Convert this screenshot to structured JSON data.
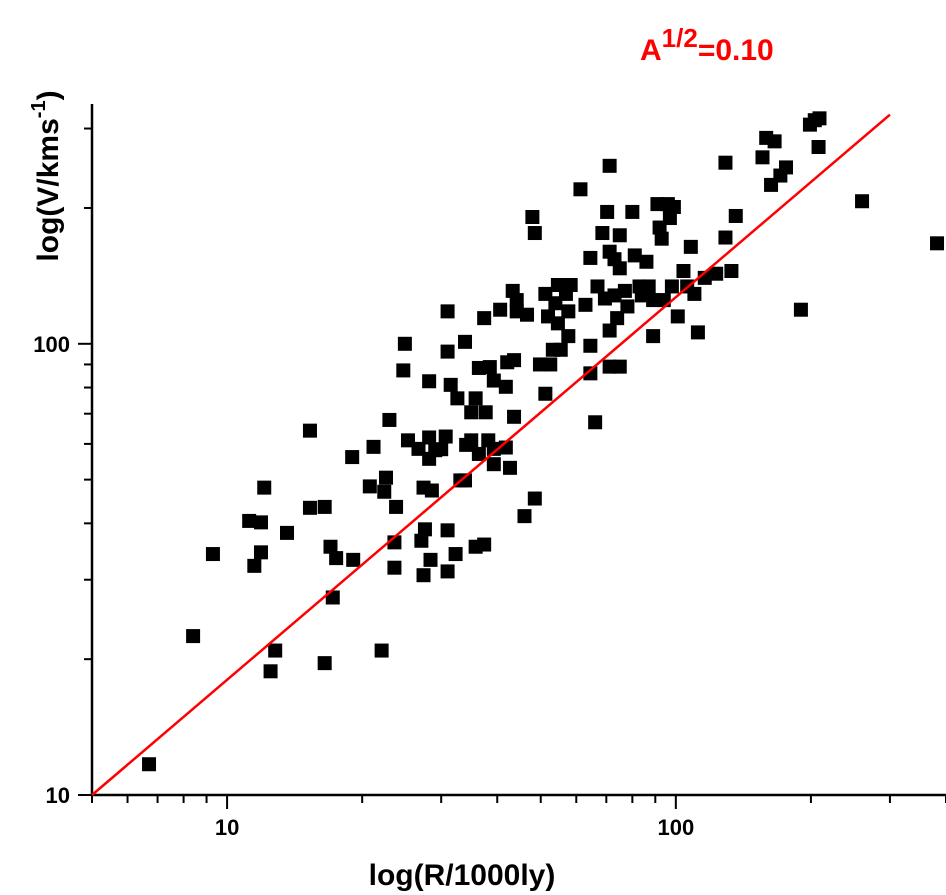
{
  "chart_data": {
    "type": "scatter",
    "xlabel": "log(R/1000ly)",
    "ylabel_main": "log(V/kms",
    "ylabel_sup": "-1",
    "ylabel_close": ")",
    "x_scale": "log",
    "y_scale": "log",
    "xlim": [
      5,
      400
    ],
    "ylim": [
      10,
      340
    ],
    "x_ticks": [
      {
        "value": 10,
        "label": "10"
      },
      {
        "value": 100,
        "label": "100"
      }
    ],
    "y_ticks": [
      {
        "value": 10,
        "label": "10"
      },
      {
        "value": 100,
        "label": "100"
      }
    ],
    "grid": false,
    "marker": "square",
    "marker_color": "#000000",
    "fit_color": "#ff0000",
    "annotation": {
      "base": "A",
      "sup": "1/2",
      "rest": "=0.10"
    },
    "fit_line": {
      "x": [
        5,
        300
      ],
      "y": [
        10,
        322
      ]
    },
    "points": [
      [
        6.7,
        11.7
      ],
      [
        8.4,
        22.5
      ],
      [
        9.3,
        34.2
      ],
      [
        11.2,
        40.5
      ],
      [
        11.5,
        32.2
      ],
      [
        11.9,
        40.2
      ],
      [
        12.1,
        48.0
      ],
      [
        11.9,
        34.5
      ],
      [
        12.5,
        18.8
      ],
      [
        12.8,
        20.9
      ],
      [
        13.6,
        38.1
      ],
      [
        15.3,
        64.2
      ],
      [
        15.3,
        43.3
      ],
      [
        16.5,
        19.6
      ],
      [
        16.5,
        43.5
      ],
      [
        17.0,
        35.5
      ],
      [
        17.2,
        27.4
      ],
      [
        17.5,
        33.5
      ],
      [
        19.0,
        56.1
      ],
      [
        19.1,
        33.2
      ],
      [
        20.8,
        48.3
      ],
      [
        21.2,
        59.1
      ],
      [
        22.1,
        20.9
      ],
      [
        22.6,
        50.5
      ],
      [
        22.4,
        47.0
      ],
      [
        23.0,
        67.8
      ],
      [
        23.6,
        31.9
      ],
      [
        23.6,
        36.3
      ],
      [
        23.8,
        43.5
      ],
      [
        24.7,
        87.3
      ],
      [
        24.9,
        100.0
      ],
      [
        25.3,
        61.1
      ],
      [
        26.7,
        58.5
      ],
      [
        27.1,
        36.6
      ],
      [
        27.4,
        48.0
      ],
      [
        27.4,
        30.7
      ],
      [
        27.6,
        38.8
      ],
      [
        28.2,
        62.0
      ],
      [
        28.2,
        55.6
      ],
      [
        28.4,
        33.2
      ],
      [
        28.2,
        82.6
      ],
      [
        28.6,
        47.3
      ],
      [
        29.1,
        58.1
      ],
      [
        30.0,
        58.4
      ],
      [
        31.0,
        96.1
      ],
      [
        30.7,
        62.3
      ],
      [
        31.5,
        81.1
      ],
      [
        31.0,
        118.0
      ],
      [
        31.0,
        38.6
      ],
      [
        31.0,
        31.3
      ],
      [
        32.3,
        34.2
      ],
      [
        32.6,
        75.7
      ],
      [
        33.1,
        49.8
      ],
      [
        34.1,
        59.7
      ],
      [
        33.9,
        49.8
      ],
      [
        33.9,
        101.0
      ],
      [
        35.0,
        61.1
      ],
      [
        35.0,
        70.5
      ],
      [
        35.8,
        75.7
      ],
      [
        35.8,
        35.5
      ],
      [
        36.4,
        88.4
      ],
      [
        36.4,
        57.0
      ],
      [
        37.4,
        114.0
      ],
      [
        37.4,
        35.9
      ],
      [
        37.7,
        70.5
      ],
      [
        38.2,
        61.1
      ],
      [
        38.5,
        88.8
      ],
      [
        39.3,
        82.9
      ],
      [
        39.3,
        58.5
      ],
      [
        39.3,
        54.1
      ],
      [
        40.6,
        119.0
      ],
      [
        41.8,
        58.9
      ],
      [
        41.8,
        80.3
      ],
      [
        42.1,
        91.0
      ],
      [
        42.7,
        53.1
      ],
      [
        43.3,
        131.0
      ],
      [
        43.6,
        68.9
      ],
      [
        43.6,
        92.0
      ],
      [
        44.2,
        125.0
      ],
      [
        44.2,
        118.0
      ],
      [
        46.0,
        41.5
      ],
      [
        46.6,
        116.0
      ],
      [
        47.9,
        191.0
      ],
      [
        48.5,
        45.4
      ],
      [
        48.5,
        176.0
      ],
      [
        49.8,
        90.0
      ],
      [
        51.2,
        77.5
      ],
      [
        51.2,
        129.0
      ],
      [
        51.9,
        115.0
      ],
      [
        52.5,
        90.0
      ],
      [
        53.2,
        97.0
      ],
      [
        53.9,
        123.0
      ],
      [
        54.6,
        135.0
      ],
      [
        54.6,
        111.0
      ],
      [
        55.4,
        97.0
      ],
      [
        56.9,
        129.0
      ],
      [
        57.6,
        104.0
      ],
      [
        57.6,
        118.0
      ],
      [
        58.3,
        135.0
      ],
      [
        61.3,
        220.0
      ],
      [
        62.9,
        122.0
      ],
      [
        64.5,
        155.0
      ],
      [
        64.5,
        99.0
      ],
      [
        64.5,
        86.0
      ],
      [
        66.1,
        67.0
      ],
      [
        66.9,
        134.0
      ],
      [
        68.6,
        176.0
      ],
      [
        69.5,
        126.0
      ],
      [
        70.3,
        196.0
      ],
      [
        71.2,
        248.0
      ],
      [
        71.2,
        160.0
      ],
      [
        71.2,
        107.0
      ],
      [
        71.2,
        89.0
      ],
      [
        73.0,
        154.0
      ],
      [
        73.0,
        128.0
      ],
      [
        74.0,
        114.0
      ],
      [
        75.0,
        174.0
      ],
      [
        75.0,
        147.0
      ],
      [
        75.0,
        89.0
      ],
      [
        77.0,
        131.0
      ],
      [
        78.0,
        121.0
      ],
      [
        80.0,
        196.0
      ],
      [
        81.0,
        157.0
      ],
      [
        83.0,
        134.0
      ],
      [
        84.0,
        128.0
      ],
      [
        86.0,
        152.0
      ],
      [
        87.0,
        134.0
      ],
      [
        89.0,
        125.0
      ],
      [
        89.0,
        104.0
      ],
      [
        91.0,
        204.0
      ],
      [
        92.0,
        181.0
      ],
      [
        93.0,
        171.0
      ],
      [
        94.0,
        125.0
      ],
      [
        96.0,
        204.0
      ],
      [
        97.0,
        190.0
      ],
      [
        98.0,
        134.0
      ],
      [
        99.0,
        201.0
      ],
      [
        101.0,
        115.0
      ],
      [
        104.0,
        145.0
      ],
      [
        106.0,
        134.0
      ],
      [
        108.0,
        164.0
      ],
      [
        110.0,
        129.0
      ],
      [
        112.0,
        106.0
      ],
      [
        116.0,
        140.0
      ],
      [
        123.0,
        143.0
      ],
      [
        129.0,
        252.0
      ],
      [
        129.0,
        172.0
      ],
      [
        133.0,
        145.0
      ],
      [
        136.0,
        192.0
      ],
      [
        156.0,
        259.0
      ],
      [
        159.0,
        286.0
      ],
      [
        163.0,
        225.0
      ],
      [
        166.0,
        281.0
      ],
      [
        171.0,
        236.0
      ],
      [
        176.0,
        246.0
      ],
      [
        190.0,
        119.0
      ],
      [
        199.0,
        306.0
      ],
      [
        204.0,
        313.0
      ],
      [
        208.0,
        273.0
      ],
      [
        209.0,
        316.0
      ],
      [
        260.0,
        207.0
      ],
      [
        382.0,
        167.0
      ]
    ]
  }
}
